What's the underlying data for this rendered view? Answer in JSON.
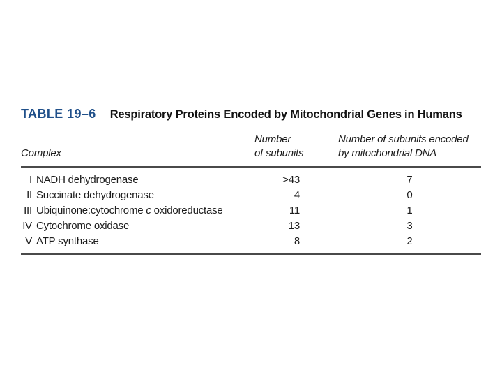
{
  "colors": {
    "background": "#ffffff",
    "label_blue": "#20508a",
    "text": "#1c1c1c",
    "rule": "#4a4a4a"
  },
  "table": {
    "label": "TABLE 19–6",
    "title": "Respiratory Proteins Encoded by Mitochondrial Genes in Humans",
    "header": {
      "col1": "Complex",
      "col2_line1": "Number",
      "col2_line2": "of subunits",
      "col3_line1": "Number of subunits encoded",
      "col3_line2": "by mitochondrial DNA"
    },
    "rows": [
      {
        "roman": "I",
        "name_pre": "NADH dehydrogenase",
        "name_italic": "",
        "name_post": "",
        "subunits": ">43",
        "mito": "7"
      },
      {
        "roman": "II",
        "name_pre": "Succinate dehydrogenase",
        "name_italic": "",
        "name_post": "",
        "subunits": "4",
        "mito": "0"
      },
      {
        "roman": "III",
        "name_pre": "Ubiquinone:cytochrome ",
        "name_italic": "c",
        "name_post": " oxidoreductase",
        "subunits": "11",
        "mito": "1"
      },
      {
        "roman": "IV",
        "name_pre": "Cytochrome oxidase",
        "name_italic": "",
        "name_post": "",
        "subunits": "13",
        "mito": "3"
      },
      {
        "roman": "V",
        "name_pre": "ATP synthase",
        "name_italic": "",
        "name_post": "",
        "subunits": "8",
        "mito": "2"
      }
    ]
  }
}
